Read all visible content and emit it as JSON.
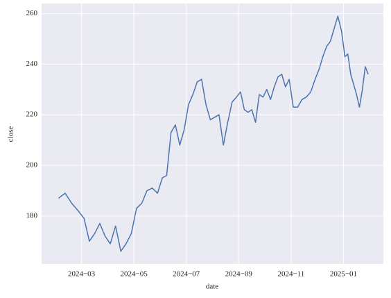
{
  "chart_data": {
    "type": "line",
    "xlabel": "date",
    "ylabel": "close",
    "x": [
      "2024-02",
      "2024-02",
      "2024-02",
      "2024-02",
      "2024-03",
      "2024-03",
      "2024-03",
      "2024-03",
      "2024-03",
      "2024-04",
      "2024-04",
      "2024-04",
      "2024-04",
      "2024-04",
      "2024-05",
      "2024-05",
      "2024-05",
      "2024-05",
      "2024-05",
      "2024-06",
      "2024-06",
      "2024-06",
      "2024-06",
      "2024-06",
      "2024-06",
      "2024-07",
      "2024-07",
      "2024-07",
      "2024-07",
      "2024-07",
      "2024-07",
      "2024-08",
      "2024-08",
      "2024-08",
      "2024-08",
      "2024-08",
      "2024-08",
      "2024-09",
      "2024-09",
      "2024-09",
      "2024-09",
      "2024-09",
      "2024-09",
      "2024-09",
      "2024-10",
      "2024-10",
      "2024-10",
      "2024-10",
      "2024-10",
      "2024-10",
      "2024-10",
      "2024-11",
      "2024-11",
      "2024-11",
      "2024-11",
      "2024-11",
      "2024-11",
      "2024-12",
      "2024-12",
      "2024-12",
      "2024-12",
      "2024-12",
      "2024-12",
      "2024-12",
      "2025-01",
      "2025-01",
      "2025-01",
      "2025-01",
      "2025-01",
      "2025-01",
      "2025-01",
      "2025-01",
      "2025-01"
    ],
    "values": [
      187,
      189,
      185,
      182,
      179,
      170,
      173,
      177,
      172,
      169,
      176,
      166,
      169,
      173,
      183,
      185,
      190,
      191,
      189,
      195,
      196,
      213,
      216,
      208,
      214,
      224,
      228,
      233,
      234,
      224,
      218,
      219,
      220,
      208,
      217,
      225,
      227,
      229,
      222,
      221,
      222,
      217,
      228,
      227,
      230,
      226,
      231,
      235,
      236,
      231,
      234,
      223,
      223,
      226,
      227,
      229,
      234,
      238,
      243,
      247,
      249,
      254,
      259,
      253,
      243,
      244,
      236,
      232,
      228,
      223,
      230,
      239,
      236
    ],
    "color": "#4c72b0",
    "xlim": [
      "2024-01",
      "2025-03"
    ],
    "xticks": [
      {
        "value": "2024-03",
        "label": "2024−03"
      },
      {
        "value": "2024-05",
        "label": "2024−05"
      },
      {
        "value": "2024-07",
        "label": "2024−07"
      },
      {
        "value": "2024-09",
        "label": "2024−09"
      },
      {
        "value": "2024-11",
        "label": "2024−11"
      },
      {
        "value": "2025-01",
        "label": "2025−01"
      }
    ],
    "ylim": [
      161,
      264
    ],
    "yticks": [
      180,
      200,
      220,
      240,
      260
    ],
    "grid": true
  }
}
